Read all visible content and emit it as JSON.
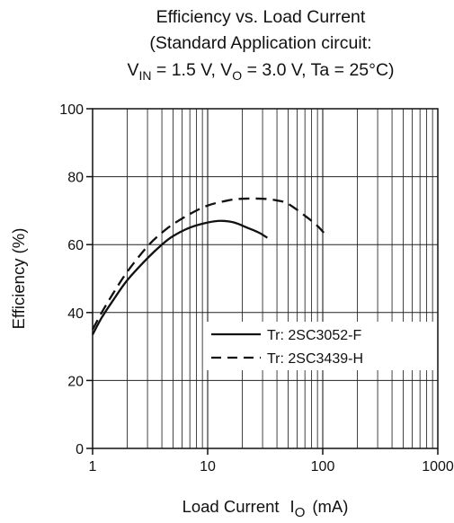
{
  "chart_data": {
    "type": "line",
    "title": {
      "line1": "Efficiency vs. Load Current",
      "line2": "(Standard Application circuit:",
      "line3": {
        "v": "V",
        "in_sub": "IN",
        "mid": " = 1.5 V, V",
        "o_sub": "O",
        "rest": " = 3.0 V, Ta = 25°C)"
      }
    },
    "xlabel": {
      "text": "Load Current",
      "symbol": "I",
      "sub": "O",
      "unit": "(mA)"
    },
    "ylabel": "Efficiency (%)",
    "x_scale": "log",
    "xlim": [
      1,
      1000
    ],
    "ylim": [
      0,
      100
    ],
    "x_ticks": [
      1,
      10,
      100,
      1000
    ],
    "x_tick_labels": [
      "1",
      "10",
      "100",
      "1000"
    ],
    "y_ticks": [
      0,
      20,
      40,
      60,
      80,
      100
    ],
    "y_tick_labels": [
      "0",
      "20",
      "40",
      "60",
      "80",
      "100"
    ],
    "grid": true,
    "legend_position": "lower-right",
    "series": [
      {
        "name": "Tr: 2SC3052-F",
        "style": "solid",
        "color": "#111111",
        "points": [
          {
            "x": 1.0,
            "y": 33.5
          },
          {
            "x": 1.2,
            "y": 38.5
          },
          {
            "x": 1.5,
            "y": 43.5
          },
          {
            "x": 2.0,
            "y": 49.5
          },
          {
            "x": 3.0,
            "y": 56.0
          },
          {
            "x": 4.0,
            "y": 60.0
          },
          {
            "x": 5.0,
            "y": 62.5
          },
          {
            "x": 7.0,
            "y": 65.0
          },
          {
            "x": 10.0,
            "y": 66.5
          },
          {
            "x": 13.0,
            "y": 67.0
          },
          {
            "x": 17.0,
            "y": 66.5
          },
          {
            "x": 22.0,
            "y": 65.0
          },
          {
            "x": 28.0,
            "y": 63.5
          },
          {
            "x": 33.0,
            "y": 62.0
          }
        ]
      },
      {
        "name": "Tr: 2SC3439-H",
        "style": "dashed",
        "color": "#111111",
        "points": [
          {
            "x": 1.0,
            "y": 35.0
          },
          {
            "x": 1.2,
            "y": 40.0
          },
          {
            "x": 1.5,
            "y": 45.5
          },
          {
            "x": 2.0,
            "y": 52.0
          },
          {
            "x": 3.0,
            "y": 59.5
          },
          {
            "x": 4.0,
            "y": 63.5
          },
          {
            "x": 5.0,
            "y": 66.0
          },
          {
            "x": 7.0,
            "y": 69.0
          },
          {
            "x": 10.0,
            "y": 71.5
          },
          {
            "x": 15.0,
            "y": 73.0
          },
          {
            "x": 20.0,
            "y": 73.5
          },
          {
            "x": 30.0,
            "y": 73.5
          },
          {
            "x": 40.0,
            "y": 73.0
          },
          {
            "x": 50.0,
            "y": 72.0
          },
          {
            "x": 70.0,
            "y": 68.5
          },
          {
            "x": 90.0,
            "y": 65.5
          },
          {
            "x": 105.0,
            "y": 63.0
          }
        ]
      }
    ]
  }
}
